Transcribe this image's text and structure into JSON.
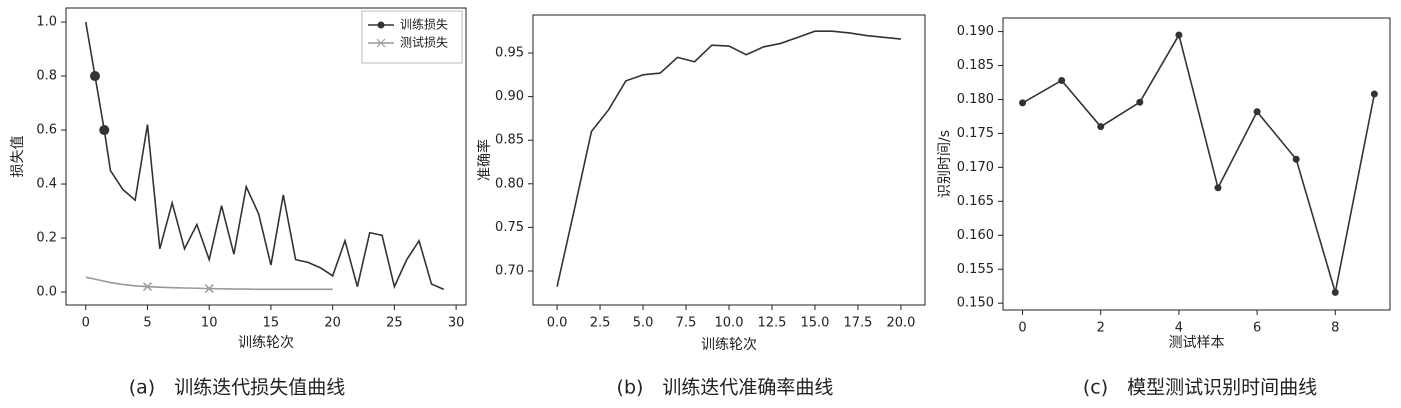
{
  "chart_data": [
    {
      "type": "line",
      "xlabel": "训练轮次",
      "ylabel": "损失值",
      "caption": "(a)　训练迭代损失值曲线",
      "xlim": [
        -1.6,
        30.8
      ],
      "ylim": [
        -0.048,
        1.052
      ],
      "xticks": [
        0,
        5,
        10,
        15,
        20,
        25,
        30
      ],
      "yticks": [
        {
          "value": 0,
          "label": "0.0"
        },
        0.2,
        0.4,
        0.6,
        0.8,
        {
          "value": 1,
          "label": "1.0"
        }
      ],
      "legend": "upper right",
      "series": [
        {
          "name": "训练损失",
          "color": "#333333",
          "marker": "circle",
          "markevery": [
            1,
            2
          ],
          "x": [
            0,
            0.75,
            1.5,
            2,
            3,
            4,
            5,
            6,
            7,
            8,
            9,
            10,
            11,
            12,
            13,
            14,
            15,
            16,
            17,
            18,
            19,
            20,
            21,
            22,
            23,
            24,
            25,
            26,
            27,
            28,
            29
          ],
          "values": [
            1.0,
            0.8,
            0.6,
            0.45,
            0.38,
            0.34,
            0.62,
            0.16,
            0.33,
            0.16,
            0.25,
            0.12,
            0.32,
            0.14,
            0.39,
            0.29,
            0.1,
            0.36,
            0.12,
            0.11,
            0.09,
            0.06,
            0.19,
            0.02,
            0.22,
            0.21,
            0.02,
            0.12,
            0.19,
            0.03,
            0.01
          ]
        },
        {
          "name": "测试损失",
          "color": "#999999",
          "marker": "x",
          "markevery": [
            5,
            10
          ],
          "x": [
            0,
            1,
            2,
            3,
            4,
            5,
            6,
            7,
            8,
            9,
            10,
            11,
            12,
            13,
            14,
            15,
            16,
            17,
            18,
            19,
            20
          ],
          "values": [
            0.055,
            0.045,
            0.035,
            0.028,
            0.023,
            0.02,
            0.018,
            0.016,
            0.015,
            0.014,
            0.013,
            0.012,
            0.011,
            0.011,
            0.01,
            0.01,
            0.01,
            0.01,
            0.01,
            0.01,
            0.01
          ]
        }
      ]
    },
    {
      "type": "line",
      "xlabel": "训练轮次",
      "ylabel": "准确率",
      "caption": "(b)　训练迭代准确率曲线",
      "xlim": [
        -1.4,
        21.4
      ],
      "ylim": [
        0.661,
        0.9936
      ],
      "xticks": [
        {
          "value": 0,
          "label": "0.0"
        },
        2.5,
        {
          "value": 5,
          "label": "5.0"
        },
        7.5,
        {
          "value": 10,
          "label": "10.0"
        },
        12.5,
        {
          "value": 15,
          "label": "15.0"
        },
        17.5,
        {
          "value": 20,
          "label": "20.0"
        }
      ],
      "yticks": [
        {
          "value": 0.7,
          "label": "0.70"
        },
        0.75,
        {
          "value": 0.8,
          "label": "0.80"
        },
        0.85,
        {
          "value": 0.9,
          "label": "0.90"
        },
        0.95
      ],
      "x": [
        0,
        1,
        2,
        3,
        4,
        5,
        6,
        7,
        8,
        9,
        10,
        11,
        12,
        13,
        14,
        15,
        16,
        17,
        18,
        19,
        20
      ],
      "series": [
        {
          "color": "#333333",
          "values": [
            0.682,
            0.77,
            0.86,
            0.885,
            0.918,
            0.925,
            0.927,
            0.945,
            0.94,
            0.959,
            0.958,
            0.948,
            0.957,
            0.961,
            0.968,
            0.975,
            0.975,
            0.973,
            0.97,
            0.968,
            0.966
          ]
        }
      ]
    },
    {
      "type": "line",
      "xlabel": "测试样本",
      "ylabel": "识别时间/s",
      "caption": "(c)　模型测试识别时间曲线",
      "xlim": [
        -0.5,
        9.4
      ],
      "ylim": [
        0.149,
        0.192
      ],
      "xticks": [
        0,
        2,
        4,
        6,
        8
      ],
      "yticks": [
        {
          "value": 0.15,
          "label": "0.150"
        },
        0.155,
        {
          "value": 0.16,
          "label": "0.160"
        },
        0.165,
        {
          "value": 0.17,
          "label": "0.170"
        },
        0.175,
        {
          "value": 0.18,
          "label": "0.180"
        },
        0.185,
        {
          "value": 0.19,
          "label": "0.190"
        }
      ],
      "x": [
        0,
        1,
        2,
        3,
        4,
        5,
        6,
        7,
        8,
        9
      ],
      "series": [
        {
          "color": "#333333",
          "marker": "circle",
          "values": [
            0.1795,
            0.1828,
            0.176,
            0.1796,
            0.1895,
            0.167,
            0.1782,
            0.1712,
            0.1516,
            0.1808
          ]
        }
      ]
    }
  ]
}
